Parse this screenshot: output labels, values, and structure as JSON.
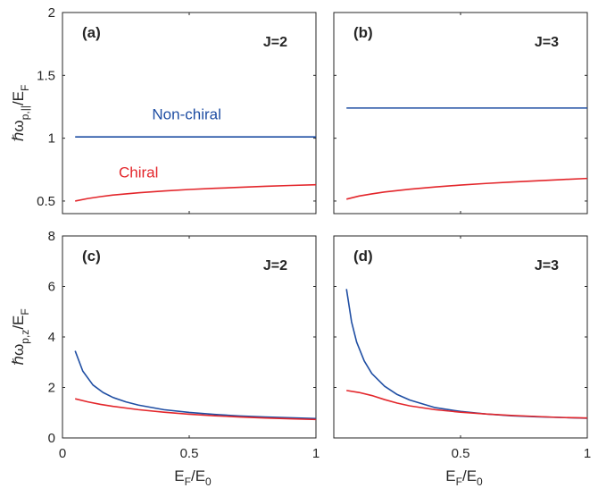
{
  "chart_data": [
    {
      "id": "a",
      "type": "line",
      "panel_label": "(a)",
      "annotation": "J=2",
      "ylabel": {
        "main": "ℏω",
        "sub": "p,||",
        "tail": "/E",
        "tail_sub": "F"
      },
      "xlim": [
        0,
        1
      ],
      "ylim": [
        0.4,
        2
      ],
      "yticks": [
        "0.5",
        "1",
        "1.5",
        "2"
      ],
      "ytick_values": [
        0.5,
        1,
        1.5,
        2
      ],
      "xticks": [],
      "series": [
        {
          "name": "Non-chiral",
          "color": "#1f4ea3",
          "x": [
            0.05,
            0.2,
            0.4,
            0.6,
            0.8,
            1.0
          ],
          "y": [
            1.01,
            1.01,
            1.01,
            1.01,
            1.01,
            1.01
          ]
        },
        {
          "name": "Chiral",
          "color": "#e3262b",
          "x": [
            0.05,
            0.1,
            0.15,
            0.2,
            0.3,
            0.4,
            0.5,
            0.6,
            0.7,
            0.8,
            0.9,
            1.0
          ],
          "y": [
            0.5,
            0.52,
            0.535,
            0.548,
            0.566,
            0.58,
            0.592,
            0.601,
            0.609,
            0.617,
            0.624,
            0.63
          ]
        }
      ],
      "series_labels": [
        {
          "series": "Non-chiral",
          "text": "Non-chiral",
          "color": "#1f4ea3"
        },
        {
          "series": "Chiral",
          "text": "Chiral",
          "color": "#e3262b"
        }
      ]
    },
    {
      "id": "b",
      "type": "line",
      "panel_label": "(b)",
      "annotation": "J=3",
      "xlim": [
        0,
        1
      ],
      "ylim": [
        0.4,
        2
      ],
      "yticks": [],
      "xticks": [],
      "series": [
        {
          "name": "Non-chiral",
          "color": "#1f4ea3",
          "x": [
            0.05,
            0.2,
            0.4,
            0.6,
            0.8,
            1.0
          ],
          "y": [
            1.24,
            1.24,
            1.24,
            1.24,
            1.24,
            1.24
          ]
        },
        {
          "name": "Chiral",
          "color": "#e3262b",
          "x": [
            0.05,
            0.1,
            0.15,
            0.2,
            0.3,
            0.4,
            0.5,
            0.6,
            0.7,
            0.8,
            0.9,
            1.0
          ],
          "y": [
            0.515,
            0.54,
            0.557,
            0.572,
            0.594,
            0.612,
            0.627,
            0.64,
            0.651,
            0.661,
            0.671,
            0.68
          ]
        }
      ]
    },
    {
      "id": "c",
      "type": "line",
      "panel_label": "(c)",
      "annotation": "J=2",
      "ylabel": {
        "main": "ℏω",
        "sub": "p,z",
        "tail": "/E",
        "tail_sub": "F"
      },
      "xlabel": {
        "a": "E",
        "a_sub": "F",
        "mid": "/E",
        "b_sub": "0"
      },
      "xlim": [
        0,
        1
      ],
      "ylim": [
        0,
        8
      ],
      "yticks": [
        "0",
        "2",
        "4",
        "6",
        "8"
      ],
      "ytick_values": [
        0,
        2,
        4,
        6,
        8
      ],
      "xticks": [
        "0",
        "0.5",
        "1"
      ],
      "xtick_values": [
        0,
        0.5,
        1
      ],
      "series": [
        {
          "name": "Non-chiral",
          "color": "#1f4ea3",
          "x": [
            0.05,
            0.08,
            0.12,
            0.16,
            0.2,
            0.25,
            0.3,
            0.4,
            0.5,
            0.6,
            0.7,
            0.8,
            0.9,
            1.0
          ],
          "y": [
            3.45,
            2.65,
            2.1,
            1.8,
            1.6,
            1.43,
            1.3,
            1.12,
            1.01,
            0.93,
            0.87,
            0.83,
            0.8,
            0.77
          ]
        },
        {
          "name": "Chiral",
          "color": "#e3262b",
          "x": [
            0.05,
            0.1,
            0.15,
            0.2,
            0.3,
            0.4,
            0.5,
            0.6,
            0.7,
            0.8,
            0.9,
            1.0
          ],
          "y": [
            1.55,
            1.43,
            1.33,
            1.25,
            1.12,
            1.02,
            0.94,
            0.88,
            0.83,
            0.79,
            0.76,
            0.73
          ]
        }
      ]
    },
    {
      "id": "d",
      "type": "line",
      "panel_label": "(d)",
      "annotation": "J=3",
      "xlabel": {
        "a": "E",
        "a_sub": "F",
        "mid": "/E",
        "b_sub": "0"
      },
      "xlim": [
        0,
        1
      ],
      "ylim": [
        0,
        8
      ],
      "yticks": [],
      "xticks": [
        "0.5",
        "1"
      ],
      "xtick_values": [
        0.5,
        1
      ],
      "series": [
        {
          "name": "Non-chiral",
          "color": "#1f4ea3",
          "x": [
            0.05,
            0.07,
            0.09,
            0.12,
            0.15,
            0.2,
            0.25,
            0.3,
            0.4,
            0.5,
            0.6,
            0.7,
            0.8,
            0.9,
            1.0
          ],
          "y": [
            5.9,
            4.6,
            3.8,
            3.05,
            2.55,
            2.05,
            1.72,
            1.5,
            1.2,
            1.05,
            0.95,
            0.88,
            0.84,
            0.81,
            0.78
          ]
        },
        {
          "name": "Chiral",
          "color": "#e3262b",
          "x": [
            0.05,
            0.1,
            0.15,
            0.2,
            0.25,
            0.3,
            0.4,
            0.5,
            0.6,
            0.7,
            0.8,
            0.9,
            1.0
          ],
          "y": [
            1.88,
            1.8,
            1.68,
            1.52,
            1.38,
            1.27,
            1.12,
            1.02,
            0.95,
            0.89,
            0.85,
            0.81,
            0.79
          ]
        }
      ]
    }
  ]
}
